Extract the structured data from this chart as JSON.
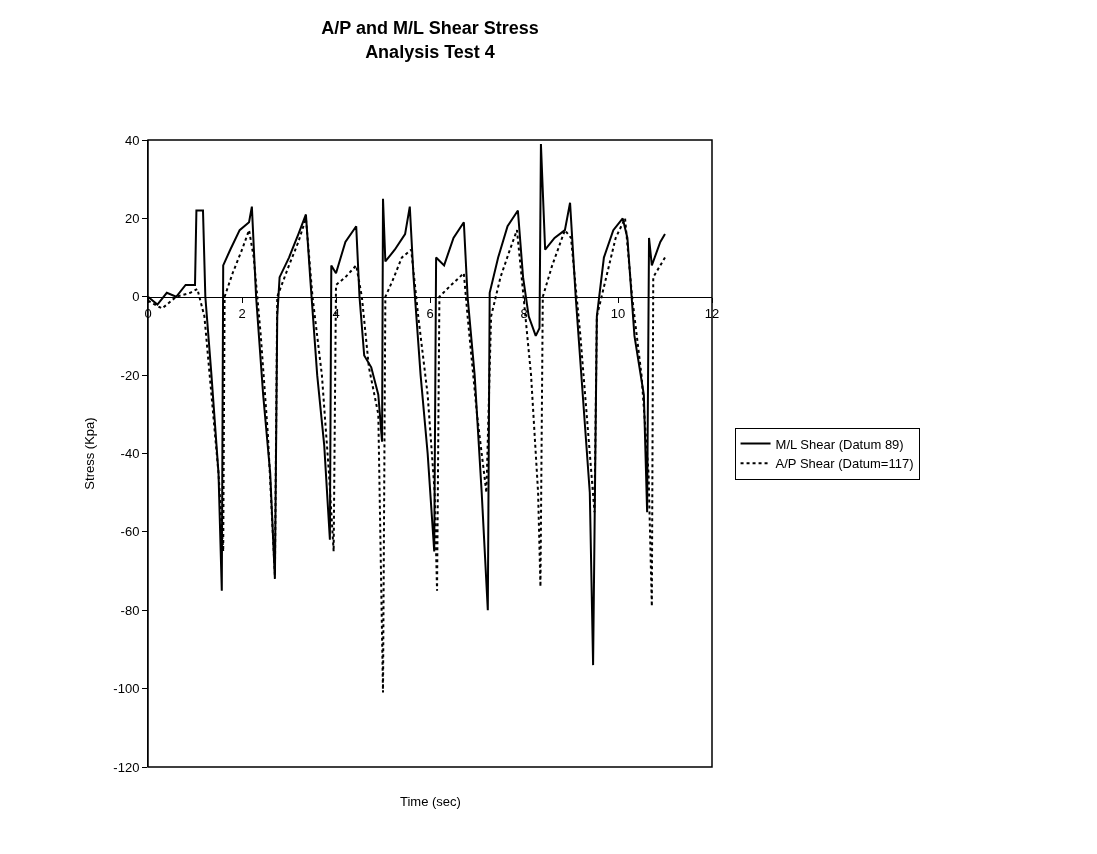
{
  "chart_data": {
    "type": "line",
    "title": "A/P and M/L Shear Stress\nAnalysis Test 4",
    "xlabel": "Time (sec)",
    "ylabel": "Stress (Kpa)",
    "xlim": [
      0,
      12
    ],
    "xticks": [
      0,
      2,
      4,
      6,
      8,
      10,
      12
    ],
    "ylim": [
      -120,
      40
    ],
    "yticks": [
      -120,
      -100,
      -80,
      -60,
      -40,
      -20,
      0,
      20,
      40
    ],
    "grid": false,
    "legend": "right",
    "marker": "none",
    "series": [
      {
        "name": "M/L Shear (Datum 89)",
        "color": "#000000",
        "line_style": "solid",
        "x": [
          0,
          0.2,
          0.4,
          0.6,
          0.8,
          1.0,
          1.03,
          1.17,
          1.22,
          1.35,
          1.5,
          1.57,
          1.6,
          1.75,
          1.95,
          2.15,
          2.21,
          2.3,
          2.45,
          2.6,
          2.7,
          2.75,
          2.8,
          3.0,
          3.2,
          3.36,
          3.45,
          3.6,
          3.75,
          3.87,
          3.9,
          4.0,
          4.2,
          4.43,
          4.5,
          4.6,
          4.75,
          4.9,
          4.98,
          5.0,
          5.05,
          5.25,
          5.47,
          5.57,
          5.65,
          5.8,
          5.95,
          6.09,
          6.13,
          6.3,
          6.5,
          6.72,
          6.8,
          6.95,
          7.1,
          7.23,
          7.27,
          7.45,
          7.65,
          7.87,
          7.98,
          8.1,
          8.25,
          8.33,
          8.36,
          8.45,
          8.65,
          8.87,
          8.98,
          9.1,
          9.25,
          9.4,
          9.47,
          9.55,
          9.7,
          9.9,
          10.1,
          10.2,
          10.35,
          10.55,
          10.62,
          10.66,
          10.72,
          10.9,
          11.0
        ],
        "values": [
          0,
          -2,
          1,
          0,
          3,
          3,
          22,
          22,
          0,
          -20,
          -45,
          -75,
          8,
          12,
          17,
          19,
          23,
          0,
          -25,
          -45,
          -72,
          -5,
          5,
          10,
          16,
          21,
          5,
          -20,
          -38,
          -62,
          8,
          6,
          14,
          18,
          0,
          -15,
          -18,
          -25,
          -37,
          25,
          9,
          12,
          16,
          23,
          5,
          -20,
          -40,
          -65,
          10,
          8,
          15,
          19,
          0,
          -20,
          -50,
          -80,
          1,
          10,
          18,
          22,
          5,
          -5,
          -10,
          -8,
          39,
          12,
          15,
          17,
          24,
          0,
          -25,
          -50,
          -94,
          -5,
          10,
          17,
          20,
          15,
          -10,
          -25,
          -55,
          15,
          8,
          14,
          16
        ]
      },
      {
        "name": "A/P Shear (Datum=117)",
        "color": "#000000",
        "line_style": "dotted",
        "x": [
          0,
          0.3,
          0.6,
          0.9,
          1.05,
          1.2,
          1.35,
          1.5,
          1.6,
          1.63,
          1.8,
          2.0,
          2.15,
          2.25,
          2.4,
          2.55,
          2.7,
          2.75,
          3.0,
          3.2,
          3.36,
          3.5,
          3.7,
          3.85,
          3.95,
          4.0,
          4.2,
          4.43,
          4.55,
          4.7,
          4.9,
          5.0,
          5.05,
          5.2,
          5.4,
          5.6,
          5.75,
          5.95,
          6.1,
          6.15,
          6.2,
          6.45,
          6.72,
          6.8,
          7.0,
          7.2,
          7.3,
          7.5,
          7.7,
          7.85,
          7.95,
          8.15,
          8.3,
          8.35,
          8.4,
          8.6,
          8.87,
          9.0,
          9.2,
          9.4,
          9.5,
          9.55,
          9.75,
          9.95,
          10.15,
          10.3,
          10.5,
          10.65,
          10.72,
          10.75,
          10.9,
          11.0
        ],
        "values": [
          -1,
          -3,
          0,
          1,
          2,
          -5,
          -25,
          -45,
          -65,
          0,
          6,
          12,
          17,
          10,
          -10,
          -35,
          -71,
          0,
          8,
          14,
          20,
          0,
          -20,
          -45,
          -65,
          3,
          5,
          8,
          0,
          -18,
          -30,
          -101,
          0,
          4,
          10,
          12,
          -5,
          -25,
          -50,
          -75,
          0,
          3,
          6,
          -5,
          -30,
          -50,
          -5,
          5,
          12,
          17,
          5,
          -20,
          -50,
          -74,
          0,
          8,
          17,
          15,
          -10,
          -40,
          -55,
          -5,
          5,
          15,
          20,
          0,
          -20,
          -45,
          -79,
          5,
          8,
          10
        ]
      }
    ]
  }
}
